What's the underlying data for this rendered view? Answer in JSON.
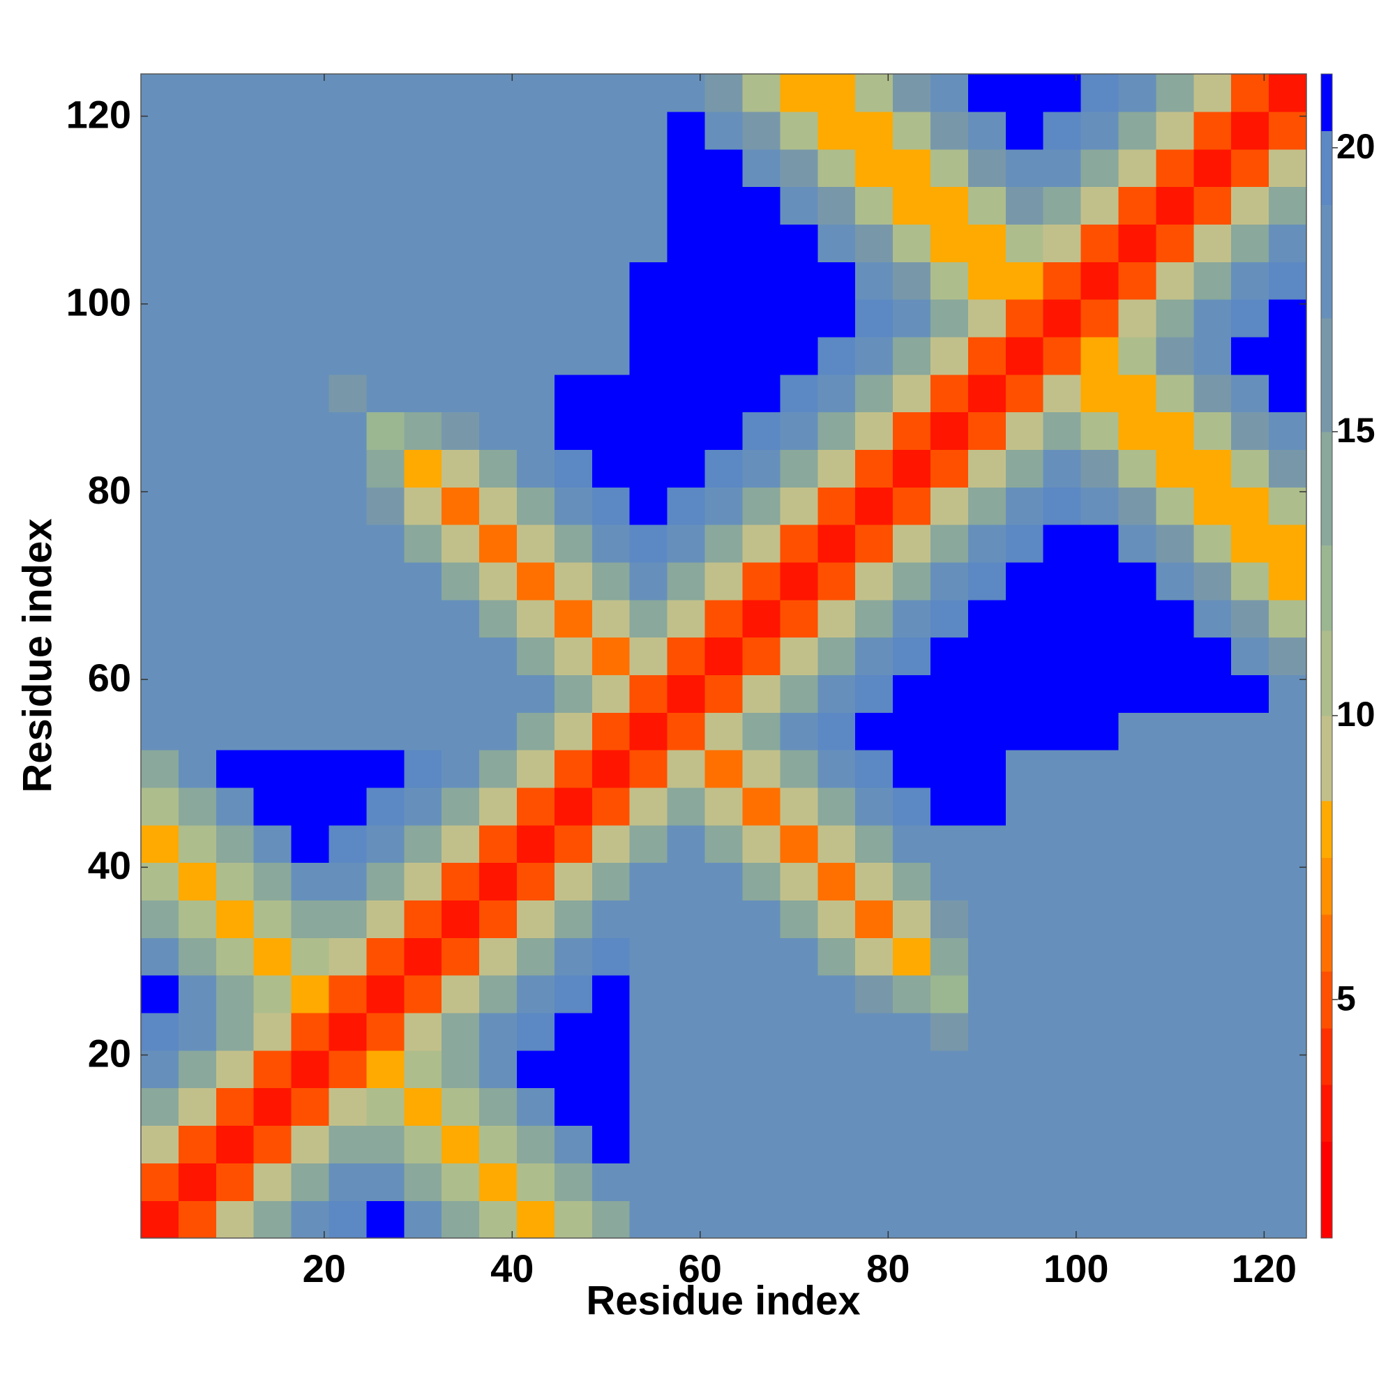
{
  "chart_data": {
    "type": "heatmap",
    "xlabel": "Residue index",
    "ylabel": "Residue index",
    "xbins": [
      0.5,
      4.5,
      8.5,
      12.5,
      16.5,
      20.5,
      24.5,
      28.5,
      32.5,
      36.5,
      40.5,
      44.5,
      48.5,
      52.5,
      56.5,
      60.5,
      64.5,
      68.5,
      72.5,
      76.5,
      80.5,
      84.5,
      88.5,
      92.5,
      96.5,
      100.5,
      104.5,
      108.5,
      112.5,
      116.5,
      120.5,
      124.5
    ],
    "ybins": [
      0.5,
      4.5,
      8.5,
      12.5,
      16.5,
      20.5,
      24.5,
      28.5,
      32.5,
      36.5,
      40.5,
      44.5,
      48.5,
      52.5,
      56.5,
      60.5,
      64.5,
      68.5,
      72.5,
      76.5,
      80.5,
      84.5,
      88.5,
      92.5,
      96.5,
      100.5,
      104.5,
      108.5,
      112.5,
      116.5,
      120.5,
      124.5
    ],
    "xlim": [
      0.5,
      124.5
    ],
    "ylim": [
      0.5,
      124.5
    ],
    "xticks": [
      20,
      40,
      60,
      80,
      100,
      120
    ],
    "yticks": [
      20,
      40,
      60,
      80,
      100,
      120
    ],
    "values": [
      [
        2.5,
        5,
        9,
        13,
        17,
        20,
        22,
        18,
        14,
        10,
        8,
        10,
        14,
        18,
        18,
        18,
        18,
        18,
        18,
        18,
        18,
        18,
        18,
        17,
        17,
        17,
        17,
        17,
        17,
        17,
        17
      ],
      [
        5,
        2.5,
        5,
        9,
        13,
        17,
        18,
        14,
        10,
        8,
        10,
        14,
        18,
        18,
        18,
        18,
        18,
        18,
        18,
        18,
        18,
        18,
        18,
        17,
        17,
        17,
        17,
        17,
        17,
        17,
        17
      ],
      [
        9,
        5,
        2.5,
        5,
        9,
        13,
        14,
        10,
        8,
        10,
        14,
        18,
        22,
        18,
        18,
        18,
        18,
        18,
        18,
        18,
        18,
        18,
        18,
        17,
        17,
        17,
        17,
        17,
        17,
        17,
        17
      ],
      [
        13,
        9,
        5,
        2.5,
        5,
        9,
        10,
        8,
        10,
        14,
        18,
        22,
        22,
        18,
        18,
        18,
        18,
        18,
        18,
        18,
        18,
        18,
        18,
        17,
        17,
        17,
        17,
        17,
        17,
        17,
        17
      ],
      [
        17,
        13,
        9,
        5,
        2.5,
        5,
        8,
        10,
        14,
        18,
        22,
        22,
        22,
        18,
        18,
        18,
        18,
        18,
        18,
        18,
        18,
        18,
        18,
        17,
        17,
        17,
        17,
        17,
        17,
        17,
        17
      ],
      [
        20,
        17,
        13,
        9,
        5,
        2.5,
        5,
        9,
        13,
        17,
        20,
        22,
        22,
        18,
        18,
        18,
        18,
        18,
        18,
        18,
        17,
        16,
        17,
        17,
        17,
        17,
        17,
        17,
        17,
        17,
        17
      ],
      [
        22,
        18,
        14,
        10,
        8,
        5,
        2.5,
        5,
        9,
        13,
        17,
        20,
        22,
        18,
        18,
        18,
        18,
        18,
        17,
        15,
        13,
        12,
        17,
        17,
        17,
        17,
        17,
        17,
        17,
        17,
        17
      ],
      [
        18,
        14,
        10,
        8,
        10,
        9,
        5,
        2.5,
        5,
        9,
        13,
        17,
        20,
        18,
        18,
        18,
        18,
        17,
        13,
        9,
        8,
        13,
        18,
        17,
        17,
        17,
        17,
        17,
        17,
        17,
        17
      ],
      [
        14,
        10,
        8,
        10,
        14,
        13,
        9,
        5,
        2.5,
        5,
        9,
        13,
        17,
        18,
        18,
        18,
        17,
        13,
        9,
        6,
        9,
        15,
        18,
        17,
        17,
        17,
        17,
        17,
        17,
        17,
        17
      ],
      [
        10,
        8,
        10,
        14,
        18,
        17,
        13,
        9,
        5,
        2.5,
        5,
        9,
        13,
        17,
        18,
        17,
        13,
        9,
        6,
        9,
        13,
        17,
        18,
        17,
        17,
        17,
        17,
        17,
        17,
        17,
        17
      ],
      [
        8,
        10,
        14,
        18,
        22,
        20,
        17,
        13,
        9,
        5,
        2.5,
        5,
        9,
        13,
        17,
        13,
        9,
        6,
        9,
        13,
        17,
        18,
        18,
        17,
        17,
        17,
        17,
        17,
        17,
        17,
        17
      ],
      [
        10,
        14,
        18,
        22,
        22,
        22,
        20,
        17,
        13,
        9,
        5,
        2.5,
        5,
        9,
        13,
        9,
        6,
        9,
        13,
        17,
        20,
        22,
        22,
        17,
        17,
        17,
        17,
        17,
        17,
        17,
        17
      ],
      [
        14,
        18,
        22,
        22,
        22,
        22,
        22,
        20,
        17,
        13,
        9,
        5,
        2.5,
        5,
        9,
        6,
        9,
        13,
        17,
        20,
        22,
        22,
        22,
        17,
        17,
        17,
        17,
        17,
        17,
        17,
        17
      ],
      [
        18,
        18,
        18,
        18,
        18,
        18,
        18,
        18,
        18,
        17,
        13,
        9,
        5,
        2.5,
        5,
        9,
        13,
        17,
        20,
        22,
        22,
        22,
        22,
        22,
        22,
        22,
        18,
        18,
        18,
        18,
        18
      ],
      [
        18,
        18,
        18,
        18,
        18,
        18,
        18,
        18,
        18,
        18,
        17,
        13,
        9,
        5,
        2.5,
        5,
        9,
        13,
        17,
        20,
        22,
        22,
        22,
        22,
        22,
        22,
        22,
        22,
        22,
        22,
        18
      ],
      [
        18,
        18,
        18,
        18,
        18,
        18,
        18,
        18,
        18,
        17,
        13,
        9,
        6,
        9,
        5,
        2.5,
        5,
        9,
        13,
        17,
        20,
        22,
        22,
        22,
        22,
        22,
        22,
        22,
        22,
        18,
        15
      ],
      [
        18,
        18,
        18,
        18,
        18,
        18,
        18,
        18,
        17,
        13,
        9,
        6,
        9,
        13,
        9,
        5,
        2.5,
        5,
        9,
        13,
        17,
        20,
        22,
        22,
        22,
        22,
        22,
        22,
        18,
        15,
        11
      ],
      [
        18,
        18,
        18,
        18,
        18,
        18,
        18,
        17,
        13,
        9,
        6,
        9,
        13,
        17,
        13,
        9,
        5,
        2.5,
        5,
        9,
        13,
        17,
        20,
        22,
        22,
        22,
        22,
        18,
        15,
        11,
        8
      ],
      [
        18,
        18,
        18,
        18,
        18,
        18,
        17,
        13,
        9,
        6,
        9,
        13,
        17,
        20,
        17,
        13,
        9,
        5,
        2.5,
        5,
        9,
        13,
        17,
        20,
        22,
        22,
        18,
        15,
        11,
        8,
        8
      ],
      [
        18,
        18,
        18,
        18,
        18,
        18,
        15,
        9,
        6,
        9,
        13,
        17,
        20,
        22,
        20,
        17,
        13,
        9,
        5,
        2.5,
        5,
        9,
        13,
        17,
        20,
        18,
        15,
        11,
        8,
        8,
        11
      ],
      [
        18,
        18,
        18,
        18,
        18,
        18,
        13,
        8,
        9,
        13,
        17,
        20,
        22,
        22,
        22,
        20,
        17,
        13,
        9,
        5,
        2.5,
        5,
        9,
        13,
        17,
        15,
        11,
        8,
        8,
        11,
        15
      ],
      [
        18,
        18,
        18,
        18,
        18,
        17,
        12,
        13,
        15,
        17,
        18,
        22,
        22,
        22,
        22,
        22,
        20,
        17,
        13,
        9,
        5,
        2.5,
        5,
        9,
        13,
        11,
        8,
        8,
        11,
        15,
        18
      ],
      [
        18,
        18,
        18,
        18,
        18,
        16,
        17,
        18,
        18,
        18,
        18,
        22,
        22,
        22,
        22,
        22,
        22,
        20,
        17,
        13,
        9,
        5,
        2.5,
        5,
        9,
        8,
        8,
        11,
        15,
        18,
        22
      ],
      [
        17,
        17,
        17,
        17,
        17,
        17,
        17,
        17,
        17,
        17,
        17,
        17,
        17,
        22,
        22,
        22,
        22,
        22,
        20,
        17,
        13,
        9,
        5,
        2.5,
        5,
        8,
        11,
        15,
        18,
        22,
        22
      ],
      [
        17,
        17,
        17,
        17,
        17,
        17,
        17,
        17,
        17,
        17,
        17,
        17,
        17,
        22,
        22,
        22,
        22,
        22,
        22,
        20,
        17,
        13,
        9,
        5,
        2.5,
        5,
        9,
        13,
        17,
        20,
        22
      ],
      [
        17,
        17,
        17,
        17,
        17,
        17,
        17,
        17,
        17,
        17,
        17,
        17,
        17,
        22,
        22,
        22,
        22,
        22,
        22,
        18,
        15,
        11,
        8,
        8,
        5,
        2.5,
        5,
        9,
        13,
        17,
        20
      ],
      [
        17,
        17,
        17,
        17,
        17,
        17,
        17,
        17,
        17,
        17,
        17,
        17,
        17,
        18,
        22,
        22,
        22,
        22,
        18,
        15,
        11,
        8,
        8,
        11,
        9,
        5,
        2.5,
        5,
        9,
        13,
        17
      ],
      [
        17,
        17,
        17,
        17,
        17,
        17,
        17,
        17,
        17,
        17,
        17,
        17,
        17,
        18,
        22,
        22,
        22,
        18,
        15,
        11,
        8,
        8,
        11,
        15,
        13,
        9,
        5,
        2.5,
        5,
        9,
        13
      ],
      [
        17,
        17,
        17,
        17,
        17,
        17,
        17,
        17,
        17,
        17,
        17,
        17,
        17,
        18,
        22,
        22,
        18,
        15,
        11,
        8,
        8,
        11,
        15,
        18,
        17,
        13,
        9,
        5,
        2.5,
        5,
        9
      ],
      [
        17,
        17,
        17,
        17,
        17,
        17,
        17,
        17,
        17,
        17,
        17,
        17,
        17,
        18,
        22,
        18,
        15,
        11,
        8,
        8,
        11,
        15,
        18,
        22,
        20,
        17,
        13,
        9,
        5,
        2.5,
        5
      ],
      [
        17,
        17,
        17,
        17,
        17,
        17,
        17,
        17,
        17,
        17,
        17,
        17,
        17,
        18,
        18,
        15,
        11,
        8,
        8,
        11,
        15,
        18,
        22,
        22,
        22,
        20,
        17,
        13,
        9,
        5,
        2.5
      ]
    ],
    "zlim": [
      0.8,
      21.3
    ],
    "levels": [
      0.8,
      2.5,
      3.5,
      4.5,
      5.5,
      6.5,
      7.5,
      8.5,
      10,
      11.5,
      13,
      15,
      17,
      19,
      20.3,
      21.3
    ],
    "colors": [
      "#ff0000",
      "#ff1500",
      "#ff3000",
      "#ff5000",
      "#ff7000",
      "#ff9000",
      "#ffaa00",
      "#c2c08a",
      "#aebd8c",
      "#9bb792",
      "#8aa89c",
      "#7898aa",
      "#6690bb",
      "#5c88c4",
      "#0000ff"
    ],
    "over_color": "#0000ff",
    "colorbar_ticks": [
      5,
      10,
      15,
      20
    ]
  }
}
